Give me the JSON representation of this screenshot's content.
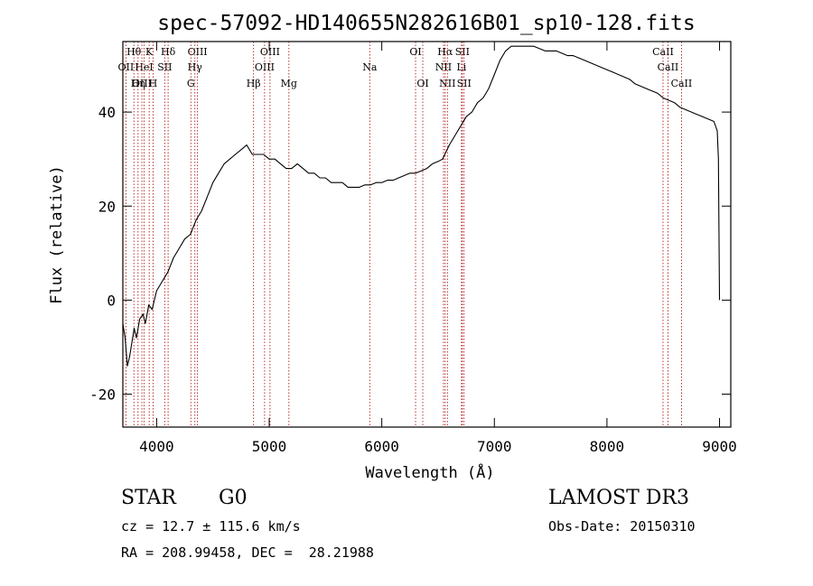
{
  "chart_data": {
    "type": "line",
    "title": "spec-57092-HD140655N282616B01_sp10-128.fits",
    "xlabel": "Wavelength (Å)",
    "ylabel": "Flux (relative)",
    "xlim": [
      3700,
      9100
    ],
    "ylim": [
      -27,
      55
    ],
    "x_ticks": [
      4000,
      5000,
      6000,
      7000,
      8000,
      9000
    ],
    "y_ticks": [
      -20,
      0,
      20,
      40
    ],
    "series": [
      {
        "name": "flux",
        "x": [
          3700,
          3720,
          3740,
          3760,
          3780,
          3800,
          3820,
          3850,
          3880,
          3900,
          3930,
          3960,
          4000,
          4050,
          4100,
          4150,
          4200,
          4250,
          4300,
          4350,
          4400,
          4450,
          4500,
          4550,
          4600,
          4650,
          4700,
          4750,
          4800,
          4850,
          4900,
          4950,
          5000,
          5050,
          5100,
          5150,
          5200,
          5250,
          5300,
          5350,
          5400,
          5450,
          5500,
          5550,
          5600,
          5650,
          5700,
          5750,
          5800,
          5850,
          5900,
          5950,
          6000,
          6050,
          6100,
          6150,
          6200,
          6250,
          6300,
          6350,
          6400,
          6450,
          6500,
          6540,
          6560,
          6600,
          6650,
          6700,
          6750,
          6800,
          6850,
          6900,
          6950,
          7000,
          7050,
          7100,
          7150,
          7200,
          7250,
          7300,
          7350,
          7400,
          7450,
          7500,
          7550,
          7600,
          7650,
          7700,
          7750,
          7800,
          7850,
          7900,
          7950,
          8000,
          8050,
          8100,
          8150,
          8200,
          8250,
          8300,
          8350,
          8400,
          8450,
          8500,
          8550,
          8600,
          8650,
          8700,
          8750,
          8800,
          8850,
          8900,
          8950,
          8980,
          8990,
          9000
        ],
        "values": [
          -5,
          -8,
          -14,
          -12,
          -9,
          -6,
          -8,
          -4,
          -3,
          -5,
          -1,
          -2,
          2,
          4,
          6,
          9,
          11,
          13,
          14,
          17,
          19,
          22,
          25,
          27,
          29,
          30,
          31,
          32,
          33,
          31,
          31,
          31,
          30,
          30,
          29,
          28,
          28,
          29,
          28,
          27,
          27,
          26,
          26,
          25,
          25,
          25,
          24,
          24,
          24,
          24.5,
          24.5,
          25,
          25,
          25.5,
          25.5,
          26,
          26.5,
          27,
          27,
          27.5,
          28,
          29,
          29.5,
          30,
          31,
          33,
          35,
          37,
          39,
          40,
          42,
          43,
          45,
          48,
          51,
          53,
          54,
          54,
          54,
          54,
          54,
          53.5,
          53,
          53,
          53,
          52.5,
          52,
          52,
          51.5,
          51,
          50.5,
          50,
          49.5,
          49,
          48.5,
          48,
          47.5,
          47,
          46,
          45.5,
          45,
          44.5,
          44,
          43,
          42.5,
          42,
          41,
          40.5,
          40,
          39.5,
          39,
          38.5,
          38,
          36,
          30,
          0
        ]
      }
    ],
    "line_markers": [
      {
        "label": "Hθ",
        "x": 3798,
        "row": 1
      },
      {
        "label": "K",
        "x": 3934,
        "row": 1
      },
      {
        "label": "Hδ",
        "x": 4102,
        "row": 1
      },
      {
        "label": "OIII",
        "x": 4363,
        "row": 1
      },
      {
        "label": "OIII",
        "x": 5007,
        "row": 1
      },
      {
        "label": "OI",
        "x": 6300,
        "row": 1
      },
      {
        "label": "Hα",
        "x": 6563,
        "row": 1
      },
      {
        "label": "SII",
        "x": 6716,
        "row": 1
      },
      {
        "label": "CaII",
        "x": 8498,
        "row": 1
      },
      {
        "label": "OII",
        "x": 3727,
        "row": 2
      },
      {
        "label": "HeI",
        "x": 3889,
        "row": 2
      },
      {
        "label": "SII",
        "x": 4072,
        "row": 2
      },
      {
        "label": "Hγ",
        "x": 4340,
        "row": 2
      },
      {
        "label": "OIII",
        "x": 4959,
        "row": 2
      },
      {
        "label": "Na",
        "x": 5893,
        "row": 2
      },
      {
        "label": "NII",
        "x": 6548,
        "row": 2
      },
      {
        "label": "Li",
        "x": 6708,
        "row": 2
      },
      {
        "label": "CaII",
        "x": 8542,
        "row": 2
      },
      {
        "label": "OIII",
        "x": 3869,
        "row": 3
      },
      {
        "label": "Hη",
        "x": 3835,
        "row": 3
      },
      {
        "label": "H",
        "x": 3968,
        "row": 3
      },
      {
        "label": "G",
        "x": 4304,
        "row": 3
      },
      {
        "label": "Hβ",
        "x": 4861,
        "row": 3
      },
      {
        "label": "Mg",
        "x": 5175,
        "row": 3
      },
      {
        "label": "OI",
        "x": 6364,
        "row": 3
      },
      {
        "label": "NII",
        "x": 6583,
        "row": 3
      },
      {
        "label": "SII",
        "x": 6731,
        "row": 3
      },
      {
        "label": "CaII",
        "x": 8662,
        "row": 3
      }
    ]
  },
  "info": {
    "class": "STAR",
    "subclass": "G0",
    "survey": "LAMOST DR3",
    "cz": "cz = 12.7 ± 115.6 km/s",
    "obs_date": "Obs-Date: 20150310",
    "radec": "RA = 208.99458, DEC =  28.21988"
  },
  "colors": {
    "line_marker": "#aa0000",
    "spectrum": "#000000"
  }
}
